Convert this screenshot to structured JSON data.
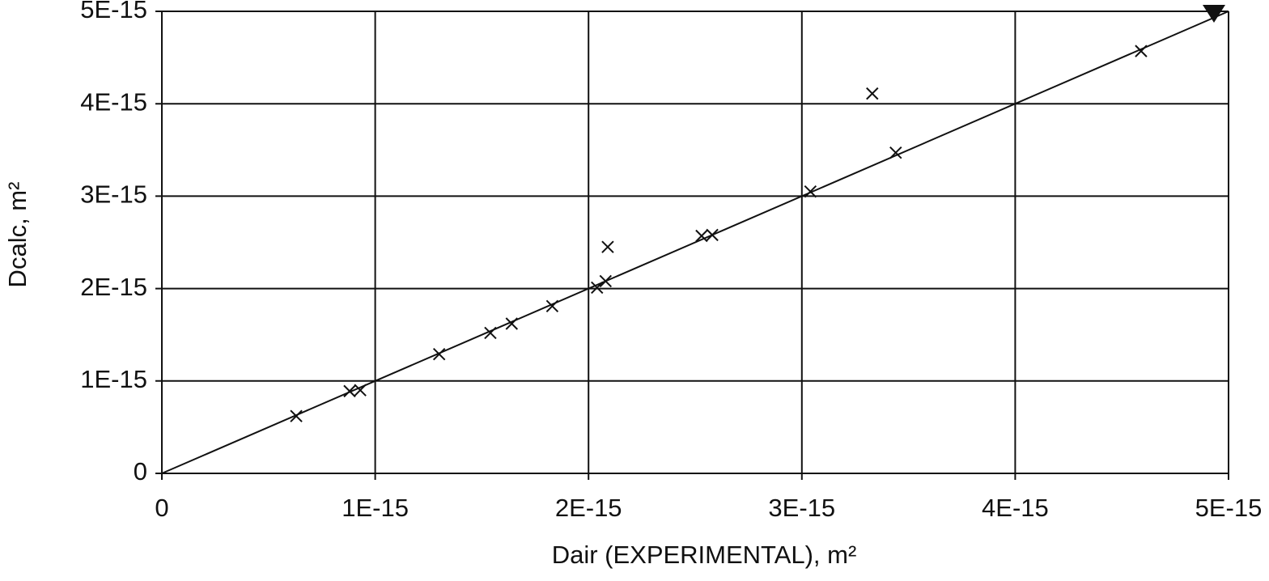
{
  "chart_data": {
    "type": "scatter",
    "x_label": "Dair (EXPERIMENTAL), m²",
    "y_label": "Dcalc, m²",
    "xlim": [
      0,
      5e-15
    ],
    "ylim": [
      0,
      5e-15
    ],
    "xticks": [
      0,
      {
        "value": 1e-15,
        "label": "1E-15"
      },
      {
        "value": 2e-15,
        "label": "2E-15"
      },
      {
        "value": 3e-15,
        "label": "3E-15"
      },
      {
        "value": 4e-15,
        "label": "4E-15"
      },
      {
        "value": 5e-15,
        "label": "5E-15"
      }
    ],
    "yticks": [
      0,
      {
        "value": 1e-15,
        "label": "1E-15"
      },
      {
        "value": 2e-15,
        "label": "2E-15"
      },
      {
        "value": 3e-15,
        "label": "3E-15"
      },
      {
        "value": 4e-15,
        "label": "4E-15"
      },
      {
        "value": 5e-15,
        "label": "5E-15"
      }
    ],
    "grid": true,
    "series": [
      {
        "marker": "x",
        "color": "#111111",
        "x": [
          6.3e-16,
          8.8e-16,
          9.3e-16,
          1.3e-15,
          1.54e-15,
          1.64e-15,
          1.83e-15,
          2.04e-15,
          2.08e-15,
          2.09e-15,
          2.53e-15,
          2.58e-15,
          3.04e-15,
          3.33e-15,
          3.44e-15,
          4.59e-15
        ],
        "values": [
          6.2e-16,
          8.9e-16,
          9e-16,
          1.29e-15,
          1.52e-15,
          1.62e-15,
          1.81e-15,
          2.01e-15,
          2.08e-15,
          2.45e-15,
          2.57e-15,
          2.58e-15,
          3.05e-15,
          4.11e-15,
          3.47e-15,
          4.57e-15
        ]
      },
      {
        "marker": "line",
        "color": "#111111",
        "end_marker": "triangle",
        "x": [
          0,
          5e-15
        ],
        "values": [
          0,
          5e-15
        ]
      }
    ]
  }
}
